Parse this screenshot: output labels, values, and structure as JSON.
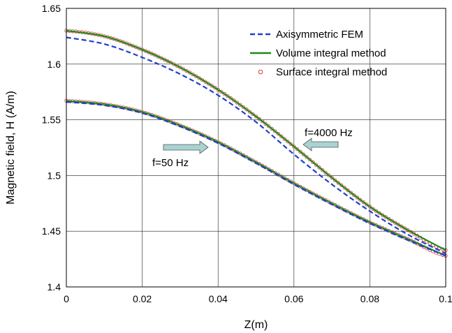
{
  "chart_data": {
    "type": "line",
    "xlabel": "Z(m)",
    "ylabel": "Magnetic field, H (A/m)",
    "xlim": [
      0,
      0.1
    ],
    "ylim": [
      1.4,
      1.65
    ],
    "xticks": [
      0,
      0.02,
      0.04,
      0.06,
      0.08,
      0.1
    ],
    "xtick_labels": [
      "0",
      "0.02",
      "0.04",
      "0.06",
      "0.08",
      "0.1"
    ],
    "yticks": [
      1.4,
      1.45,
      1.5,
      1.55,
      1.6,
      1.65
    ],
    "ytick_labels": [
      "1.4",
      "1.45",
      "1.5",
      "1.55",
      "1.6",
      "1.65"
    ],
    "grid": true,
    "legend_position": "top-right",
    "x": [
      0,
      0.01,
      0.02,
      0.03,
      0.04,
      0.05,
      0.06,
      0.07,
      0.08,
      0.09,
      0.1
    ],
    "groups": [
      {
        "annotation": "f=4000 Hz",
        "fem": [
          1.624,
          1.618,
          1.606,
          1.591,
          1.572,
          1.548,
          1.519,
          1.492,
          1.468,
          1.447,
          1.43
        ],
        "vim": [
          1.63,
          1.625,
          1.613,
          1.597,
          1.577,
          1.553,
          1.526,
          1.498,
          1.472,
          1.451,
          1.433
        ],
        "sim": [
          1.63,
          1.625,
          1.613,
          1.597,
          1.577,
          1.553,
          1.526,
          1.498,
          1.472,
          1.451,
          1.433
        ]
      },
      {
        "annotation": "f=50 Hz",
        "fem": [
          1.566,
          1.563,
          1.556,
          1.544,
          1.529,
          1.511,
          1.492,
          1.474,
          1.457,
          1.442,
          1.428
        ],
        "vim": [
          1.567,
          1.564,
          1.557,
          1.545,
          1.53,
          1.512,
          1.493,
          1.475,
          1.458,
          1.443,
          1.428
        ],
        "sim": [
          1.567,
          1.564,
          1.557,
          1.545,
          1.53,
          1.512,
          1.493,
          1.475,
          1.458,
          1.443,
          1.428
        ]
      }
    ],
    "legend": [
      {
        "key": "fem",
        "label": "Axisymmetric FEM",
        "color": "#1f3fd0",
        "style": "dashed"
      },
      {
        "key": "vim",
        "label": "Volume integral method",
        "color": "#1a8a1a",
        "style": "solid"
      },
      {
        "key": "sim",
        "label": "Surface integral method",
        "color": "#d23c3c",
        "style": "marker"
      }
    ],
    "arrow_color": "#a9d3d3"
  }
}
